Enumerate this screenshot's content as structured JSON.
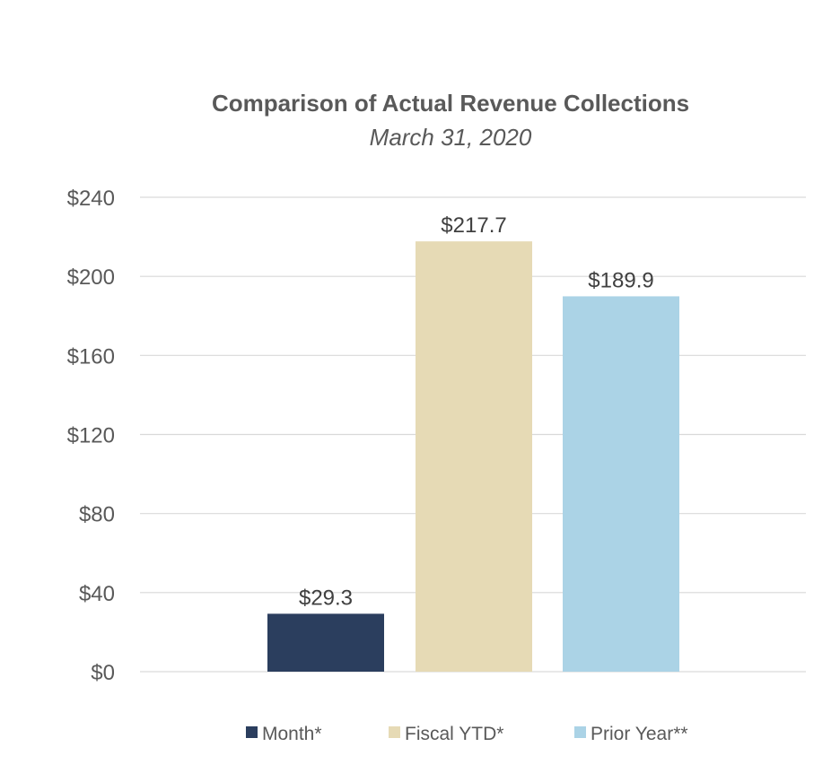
{
  "chart_data": {
    "type": "bar",
    "title": "Comparison of Actual Revenue Collections",
    "subtitle": "March 31, 2020",
    "categories": [
      "Month*",
      "Fiscal YTD*",
      "Prior Year**"
    ],
    "values": [
      29.3,
      217.7,
      189.9
    ],
    "data_labels": [
      "$29.3",
      "$217.7",
      "$189.9"
    ],
    "colors": [
      "#2b3e5e",
      "#e6dab5",
      "#abd3e6"
    ],
    "ylim": [
      0,
      240
    ],
    "yticks": [
      0,
      40,
      80,
      120,
      160,
      200,
      240
    ],
    "ytick_labels": [
      "$0",
      "$40",
      "$80",
      "$120",
      "$160",
      "$200",
      "$240"
    ],
    "xlabel": "",
    "ylabel": "",
    "grid": true,
    "legend": {
      "position": "bottom",
      "entries": [
        "Month*",
        "Fiscal YTD*",
        "Prior Year**"
      ]
    }
  }
}
